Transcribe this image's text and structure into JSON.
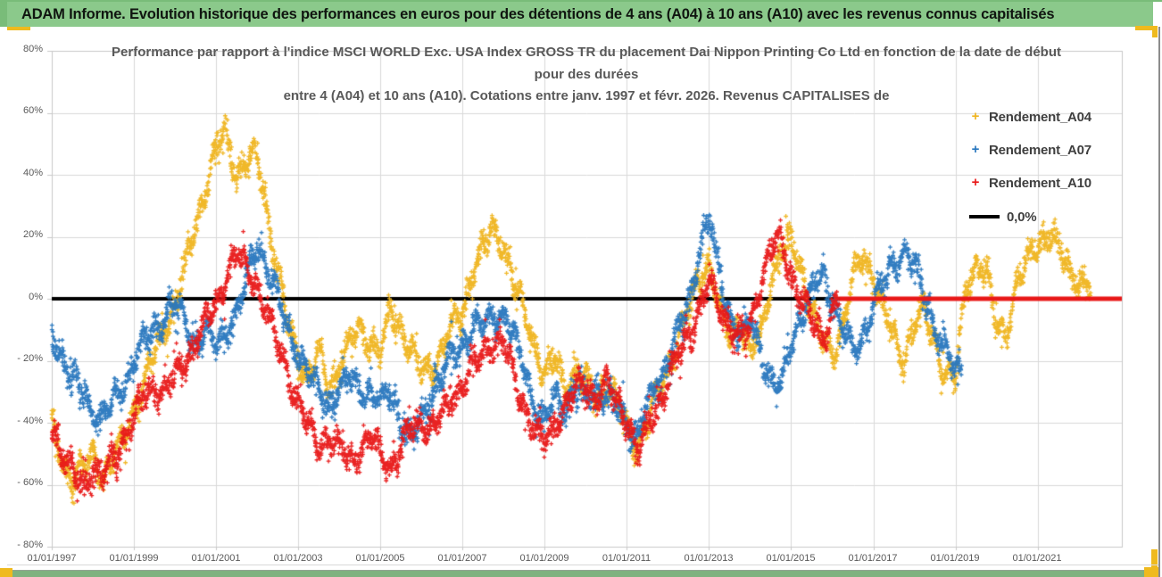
{
  "banner": {
    "title": "ADAM Informe. Evolution historique des performances en euros pour des détentions de 4 ans (A04) à 10 ans (A10) avec les revenus connus capitalisés"
  },
  "colors": {
    "banner_green": "#8BC98B",
    "frame_green": "#79BC79",
    "bottom_band_green": "#7FB27F",
    "accent_gold": "#EFBA1E",
    "edge_gray": "#8C8C8C",
    "grid_gray": "#D9D9D9",
    "plot_border_gray": "#C9C9C9",
    "axis_text": "#595959",
    "title_text": "#595959",
    "legend_text": "#3F3F3F"
  },
  "chart": {
    "title_lines": [
      "Performance par rapport à l'indice MSCI WORLD Exc. USA Index GROSS TR  du placement Dai Nippon Printing Co Ltd en fonction de la date de début",
      "pour des durées",
      "entre 4 (A04) et 10 ans (A10).  Cotations entre janv. 1997 et févr. 2026. Revenus CAPITALISES de"
    ],
    "marker_glyph": "+",
    "legend_position": "right"
  },
  "chart_data": {
    "type": "scatter",
    "title": "Performance par rapport à l'indice MSCI WORLD Exc. USA Index GROSS TR du placement Dai Nippon Printing Co Ltd en fonction de la date de début pour des durées entre 4 (A04) et 10 ans (A10). Cotations entre janv. 1997 et févr. 2026. Revenus CAPITALISES de",
    "xlabel": "",
    "ylabel": "",
    "grid": true,
    "x_axis": {
      "tick_labels": [
        "01/01/1997",
        "01/01/1999",
        "01/01/2001",
        "01/01/2003",
        "01/01/2005",
        "01/01/2007",
        "01/01/2009",
        "01/01/2011",
        "01/01/2013",
        "01/01/2015",
        "01/01/2017",
        "01/01/2019",
        "01/01/2021"
      ],
      "tick_years": [
        1997,
        1999,
        2001,
        2003,
        2005,
        2007,
        2009,
        2011,
        2013,
        2015,
        2017,
        2019,
        2021
      ],
      "range_years": [
        1997.0,
        2023.05
      ]
    },
    "y_axis": {
      "tick_labels": [
        "80%",
        "60%",
        "40%",
        "20%",
        "0%",
        "- 20%",
        "- 40%",
        "- 60%",
        "- 80%"
      ],
      "tick_values": [
        80,
        60,
        40,
        20,
        0,
        -20,
        -40,
        -60,
        -80
      ],
      "range_percent": [
        -80,
        80
      ],
      "unit": "%"
    },
    "zero_line": {
      "label": "0,0%",
      "color": "#000000",
      "y": 0
    },
    "series": [
      {
        "name": "Rendement_A04",
        "color": "#EFB41E",
        "waypoints": [
          [
            1997.0,
            -42
          ],
          [
            1997.25,
            -52
          ],
          [
            1997.5,
            -58
          ],
          [
            1997.75,
            -55
          ],
          [
            1998.0,
            -50
          ],
          [
            1998.25,
            -57
          ],
          [
            1998.5,
            -52
          ],
          [
            1998.75,
            -45
          ],
          [
            1999.0,
            -35
          ],
          [
            1999.25,
            -28
          ],
          [
            1999.5,
            -18
          ],
          [
            1999.75,
            -8
          ],
          [
            2000.0,
            -3
          ],
          [
            2000.25,
            10
          ],
          [
            2000.5,
            25
          ],
          [
            2000.75,
            35
          ],
          [
            2001.0,
            48
          ],
          [
            2001.25,
            54
          ],
          [
            2001.5,
            40
          ],
          [
            2001.75,
            44
          ],
          [
            2002.0,
            46
          ],
          [
            2002.25,
            28
          ],
          [
            2002.5,
            8
          ],
          [
            2002.75,
            -8
          ],
          [
            2003.0,
            -18
          ],
          [
            2003.25,
            -26
          ],
          [
            2003.5,
            -18
          ],
          [
            2003.75,
            -28
          ],
          [
            2004.0,
            -22
          ],
          [
            2004.25,
            -15
          ],
          [
            2004.5,
            -10
          ],
          [
            2004.75,
            -13
          ],
          [
            2005.0,
            -18
          ],
          [
            2005.25,
            -5
          ],
          [
            2005.5,
            -9
          ],
          [
            2005.75,
            -16
          ],
          [
            2006.0,
            -24
          ],
          [
            2006.25,
            -22
          ],
          [
            2006.5,
            -16
          ],
          [
            2006.75,
            -9
          ],
          [
            2007.0,
            -4
          ],
          [
            2007.25,
            10
          ],
          [
            2007.5,
            16
          ],
          [
            2007.75,
            22
          ],
          [
            2008.0,
            18
          ],
          [
            2008.25,
            4
          ],
          [
            2008.5,
            -4
          ],
          [
            2008.75,
            -15
          ],
          [
            2009.0,
            -25
          ],
          [
            2009.25,
            -20
          ],
          [
            2009.5,
            -28
          ],
          [
            2009.75,
            -24
          ],
          [
            2010.0,
            -28
          ],
          [
            2010.25,
            -32
          ],
          [
            2010.5,
            -27
          ],
          [
            2010.75,
            -34
          ],
          [
            2011.0,
            -42
          ],
          [
            2011.25,
            -48
          ],
          [
            2011.5,
            -40
          ],
          [
            2011.75,
            -30
          ],
          [
            2012.0,
            -22
          ],
          [
            2012.25,
            -14
          ],
          [
            2012.5,
            -4
          ],
          [
            2012.75,
            8
          ],
          [
            2013.0,
            12
          ],
          [
            2013.25,
            -4
          ],
          [
            2013.5,
            -11
          ],
          [
            2013.75,
            -7
          ],
          [
            2014.0,
            -18
          ],
          [
            2014.25,
            -12
          ],
          [
            2014.5,
            6
          ],
          [
            2014.75,
            14
          ],
          [
            2015.0,
            18
          ],
          [
            2015.25,
            10
          ],
          [
            2015.5,
            -4
          ],
          [
            2015.75,
            -14
          ],
          [
            2016.0,
            -18
          ],
          [
            2016.25,
            -8
          ],
          [
            2016.5,
            6
          ],
          [
            2016.75,
            14
          ],
          [
            2017.0,
            8
          ],
          [
            2017.25,
            -4
          ],
          [
            2017.5,
            -13
          ],
          [
            2017.75,
            -19
          ],
          [
            2018.0,
            -8
          ],
          [
            2018.25,
            -4
          ],
          [
            2018.5,
            -14
          ],
          [
            2018.75,
            -24
          ],
          [
            2019.0,
            -27
          ],
          [
            2019.25,
            4
          ],
          [
            2019.5,
            11
          ],
          [
            2019.75,
            7
          ],
          [
            2020.0,
            -8
          ],
          [
            2020.25,
            -10
          ],
          [
            2020.5,
            4
          ],
          [
            2020.75,
            12
          ],
          [
            2021.0,
            19
          ],
          [
            2021.25,
            20
          ],
          [
            2021.5,
            17
          ],
          [
            2021.75,
            11
          ],
          [
            2022.0,
            5
          ],
          [
            2022.3,
            2
          ]
        ]
      },
      {
        "name": "Rendement_A07",
        "color": "#2776BE",
        "waypoints": [
          [
            1997.0,
            -12
          ],
          [
            1997.25,
            -18
          ],
          [
            1997.5,
            -26
          ],
          [
            1997.75,
            -31
          ],
          [
            1998.0,
            -36
          ],
          [
            1998.25,
            -38
          ],
          [
            1998.5,
            -34
          ],
          [
            1998.75,
            -28
          ],
          [
            1999.0,
            -20
          ],
          [
            1999.25,
            -15
          ],
          [
            1999.5,
            -10
          ],
          [
            1999.75,
            -5
          ],
          [
            2000.0,
            -2
          ],
          [
            2000.25,
            -8
          ],
          [
            2000.5,
            -14
          ],
          [
            2000.75,
            -11
          ],
          [
            2001.0,
            -15
          ],
          [
            2001.25,
            -10
          ],
          [
            2001.5,
            -5
          ],
          [
            2001.75,
            6
          ],
          [
            2002.0,
            18
          ],
          [
            2002.25,
            10
          ],
          [
            2002.5,
            0
          ],
          [
            2002.75,
            -10
          ],
          [
            2003.0,
            -18
          ],
          [
            2003.25,
            -25
          ],
          [
            2003.5,
            -30
          ],
          [
            2003.75,
            -34
          ],
          [
            2004.0,
            -30
          ],
          [
            2004.25,
            -25
          ],
          [
            2004.5,
            -28
          ],
          [
            2004.75,
            -31
          ],
          [
            2005.0,
            -34
          ],
          [
            2005.25,
            -30
          ],
          [
            2005.5,
            -40
          ],
          [
            2005.75,
            -46
          ],
          [
            2006.0,
            -38
          ],
          [
            2006.25,
            -30
          ],
          [
            2006.5,
            -25
          ],
          [
            2006.75,
            -18
          ],
          [
            2007.0,
            -14
          ],
          [
            2007.25,
            -10
          ],
          [
            2007.5,
            -8
          ],
          [
            2007.75,
            -5
          ],
          [
            2008.0,
            -6
          ],
          [
            2008.25,
            -12
          ],
          [
            2008.5,
            -22
          ],
          [
            2008.75,
            -34
          ],
          [
            2009.0,
            -42
          ],
          [
            2009.25,
            -31
          ],
          [
            2009.5,
            -34
          ],
          [
            2009.75,
            -30
          ],
          [
            2010.0,
            -32
          ],
          [
            2010.25,
            -28
          ],
          [
            2010.5,
            -31
          ],
          [
            2010.75,
            -35
          ],
          [
            2011.0,
            -40
          ],
          [
            2011.25,
            -44
          ],
          [
            2011.5,
            -35
          ],
          [
            2011.75,
            -27
          ],
          [
            2012.0,
            -19
          ],
          [
            2012.25,
            -11
          ],
          [
            2012.5,
            -2
          ],
          [
            2012.75,
            16
          ],
          [
            2013.0,
            26
          ],
          [
            2013.25,
            8
          ],
          [
            2013.5,
            -5
          ],
          [
            2013.75,
            -12
          ],
          [
            2014.0,
            -8
          ],
          [
            2014.25,
            -16
          ],
          [
            2014.5,
            -26
          ],
          [
            2014.75,
            -30
          ],
          [
            2015.0,
            -14
          ],
          [
            2015.25,
            -5
          ],
          [
            2015.5,
            2
          ],
          [
            2015.75,
            8
          ],
          [
            2016.0,
            0
          ],
          [
            2016.25,
            -9
          ],
          [
            2016.5,
            -18
          ],
          [
            2016.75,
            -12
          ],
          [
            2017.0,
            -2
          ],
          [
            2017.25,
            5
          ],
          [
            2017.5,
            12
          ],
          [
            2017.75,
            16
          ],
          [
            2018.0,
            10
          ],
          [
            2018.25,
            1
          ],
          [
            2018.5,
            -9
          ],
          [
            2018.75,
            -17
          ],
          [
            2019.0,
            -24
          ],
          [
            2019.15,
            -22
          ]
        ]
      },
      {
        "name": "Rendement_A10",
        "color": "#E81717",
        "flat_zero_from": 2016.17,
        "flat_zero_to": 2023.05,
        "waypoints": [
          [
            1997.0,
            -40
          ],
          [
            1997.25,
            -50
          ],
          [
            1997.5,
            -56
          ],
          [
            1997.75,
            -60
          ],
          [
            1998.0,
            -55
          ],
          [
            1998.25,
            -58
          ],
          [
            1998.5,
            -52
          ],
          [
            1998.75,
            -45
          ],
          [
            1999.0,
            -38
          ],
          [
            1999.25,
            -32
          ],
          [
            1999.5,
            -28
          ],
          [
            1999.75,
            -30
          ],
          [
            2000.0,
            -25
          ],
          [
            2000.25,
            -20
          ],
          [
            2000.5,
            -14
          ],
          [
            2000.75,
            -8
          ],
          [
            2001.0,
            -2
          ],
          [
            2001.25,
            8
          ],
          [
            2001.5,
            14
          ],
          [
            2001.75,
            10
          ],
          [
            2002.0,
            4
          ],
          [
            2002.25,
            -5
          ],
          [
            2002.5,
            -15
          ],
          [
            2002.75,
            -25
          ],
          [
            2003.0,
            -34
          ],
          [
            2003.25,
            -42
          ],
          [
            2003.5,
            -47
          ],
          [
            2003.75,
            -44
          ],
          [
            2004.0,
            -48
          ],
          [
            2004.25,
            -52
          ],
          [
            2004.5,
            -48
          ],
          [
            2004.75,
            -45
          ],
          [
            2005.0,
            -50
          ],
          [
            2005.25,
            -54
          ],
          [
            2005.5,
            -48
          ],
          [
            2005.75,
            -42
          ],
          [
            2006.0,
            -39
          ],
          [
            2006.25,
            -42
          ],
          [
            2006.5,
            -38
          ],
          [
            2006.75,
            -32
          ],
          [
            2007.0,
            -28
          ],
          [
            2007.25,
            -22
          ],
          [
            2007.5,
            -18
          ],
          [
            2007.75,
            -13
          ],
          [
            2008.0,
            -15
          ],
          [
            2008.25,
            -25
          ],
          [
            2008.5,
            -35
          ],
          [
            2008.75,
            -43
          ],
          [
            2009.0,
            -47
          ],
          [
            2009.25,
            -40
          ],
          [
            2009.5,
            -34
          ],
          [
            2009.75,
            -30
          ],
          [
            2010.0,
            -28
          ],
          [
            2010.25,
            -32
          ],
          [
            2010.5,
            -28
          ],
          [
            2010.75,
            -33
          ],
          [
            2011.0,
            -38
          ],
          [
            2011.25,
            -50
          ],
          [
            2011.5,
            -42
          ],
          [
            2011.75,
            -34
          ],
          [
            2012.0,
            -27
          ],
          [
            2012.25,
            -19
          ],
          [
            2012.5,
            -11
          ],
          [
            2012.75,
            -4
          ],
          [
            2013.0,
            5
          ],
          [
            2013.25,
            -2
          ],
          [
            2013.5,
            -8
          ],
          [
            2013.75,
            -14
          ],
          [
            2014.0,
            -9
          ],
          [
            2014.25,
            5
          ],
          [
            2014.5,
            16
          ],
          [
            2014.75,
            18
          ],
          [
            2015.0,
            8
          ],
          [
            2015.25,
            0
          ],
          [
            2015.5,
            -8
          ],
          [
            2015.75,
            -12
          ],
          [
            2016.0,
            -5
          ],
          [
            2016.17,
            0
          ]
        ]
      }
    ]
  }
}
